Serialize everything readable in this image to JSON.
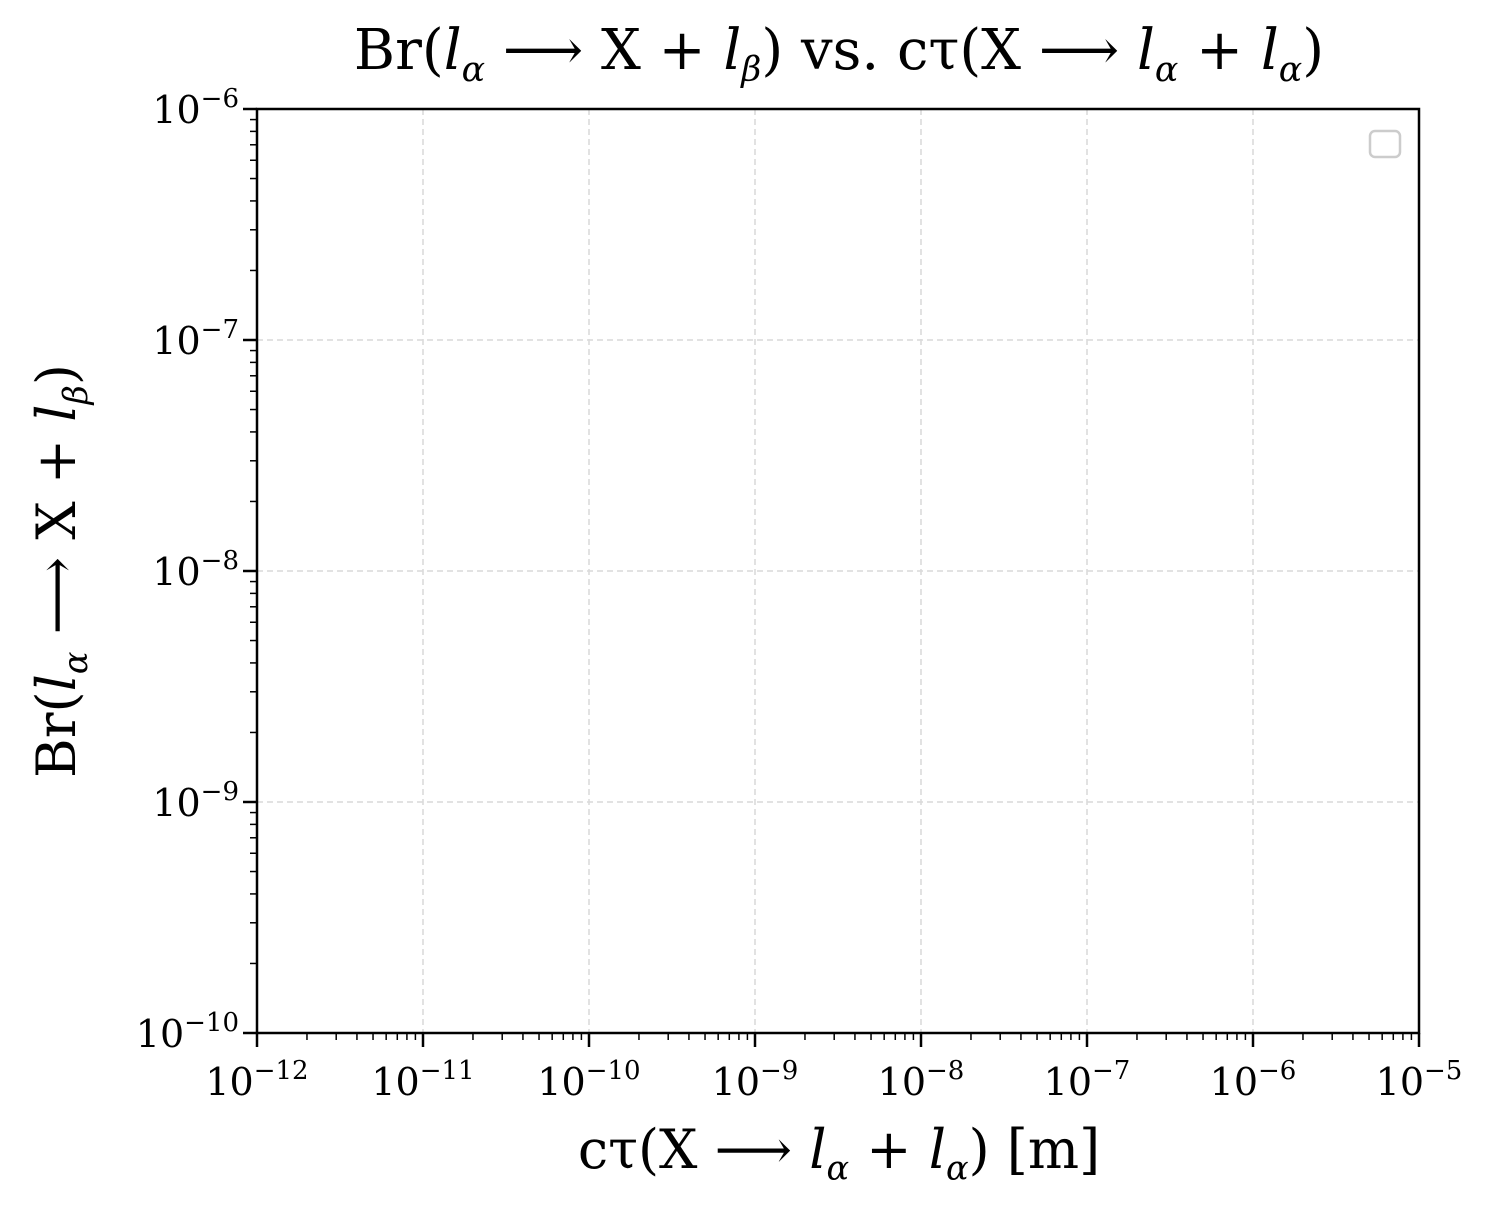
{
  "chart_data": {
    "type": "scatter",
    "title": "Br(l_α ⟶ X + l_β) vs. cτ(X ⟶ l_α + l_α)",
    "xlabel": "cτ(X ⟶ l_α + l_α) [m]",
    "ylabel": "Br(l_α ⟶ X + l_β)",
    "x_scale": "log",
    "y_scale": "log",
    "xlim": [
      1e-12,
      1e-05
    ],
    "ylim": [
      1e-10,
      1e-06
    ],
    "x_ticks": [
      {
        "exp": -12
      },
      {
        "exp": -11
      },
      {
        "exp": -10
      },
      {
        "exp": -9
      },
      {
        "exp": -8
      },
      {
        "exp": -7
      },
      {
        "exp": -6
      },
      {
        "exp": -5
      }
    ],
    "y_ticks": [
      {
        "exp": -10
      },
      {
        "exp": -9
      },
      {
        "exp": -8
      },
      {
        "exp": -7
      },
      {
        "exp": -6
      }
    ],
    "tick_base": "10",
    "grid": true,
    "legend": "top-right",
    "series": [],
    "colors": {
      "grid": "#d9d9d9",
      "axes": "#000000",
      "legend_border": "#cccccc"
    }
  }
}
